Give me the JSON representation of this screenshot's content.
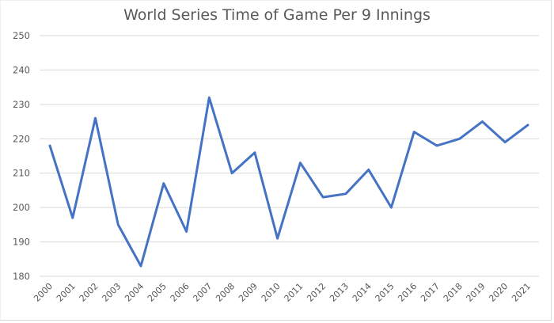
{
  "chart_data": {
    "type": "line",
    "title": "World Series Time of Game Per 9 Innings",
    "xlabel": "",
    "ylabel": "",
    "ylim": [
      180,
      250
    ],
    "yticks": [
      180,
      190,
      200,
      210,
      220,
      230,
      240,
      250
    ],
    "grid": true,
    "legend": null,
    "categories": [
      "2000",
      "2001",
      "2002",
      "2003",
      "2004",
      "2005",
      "2006",
      "2007",
      "2008",
      "2009",
      "2010",
      "2011",
      "2012",
      "2013",
      "2014",
      "2015",
      "2016",
      "2017",
      "2018",
      "2019",
      "2020",
      "2021"
    ],
    "series": [
      {
        "name": "Time of Game Per 9 Innings",
        "color": "#4472c4",
        "values": [
          218,
          197,
          226,
          195,
          183,
          207,
          193,
          232,
          210,
          216,
          191,
          213,
          203,
          204,
          211,
          200,
          222,
          218,
          220,
          225,
          219,
          224
        ]
      }
    ]
  },
  "colors": {
    "line": "#4472c4",
    "grid": "#d9d9d9",
    "text": "#595959"
  }
}
